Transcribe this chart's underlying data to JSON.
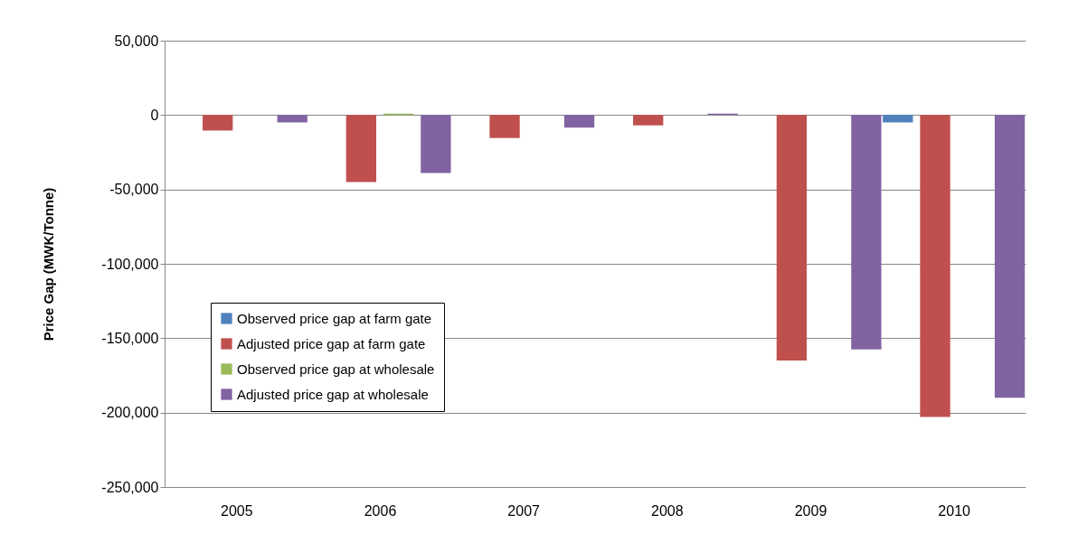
{
  "chart_data": {
    "type": "bar",
    "ylabel": "Price Gap  (MWK/Tonne)",
    "categories": [
      "2005",
      "2006",
      "2007",
      "2008",
      "2009",
      "2010"
    ],
    "series": [
      {
        "name": "Observed price gap at farm gate",
        "color": "#4f81bd",
        "values": [
          0,
          0,
          0,
          0,
          0,
          -5000
        ]
      },
      {
        "name": "Adjusted price gap at farm gate",
        "color": "#c0504d",
        "values": [
          -10500,
          -45000,
          -15500,
          -7000,
          -165000,
          -203000
        ]
      },
      {
        "name": "Observed price gap at wholesale",
        "color": "#9bbb59",
        "values": [
          0,
          1000,
          0,
          0,
          0,
          0
        ]
      },
      {
        "name": "Adjusted price gap at wholesale",
        "color": "#8064a2",
        "values": [
          -5000,
          -39000,
          -8500,
          1000,
          -157500,
          -190000
        ]
      }
    ],
    "ylim": [
      -250000,
      50000
    ],
    "yticks": [
      {
        "value": -250000,
        "label": "-250,000"
      },
      {
        "value": -200000,
        "label": "-200,000"
      },
      {
        "value": -150000,
        "label": "-150,000"
      },
      {
        "value": -100000,
        "label": "-100,000"
      },
      {
        "value": -50000,
        "label": "-50,000"
      },
      0,
      {
        "value": 50000,
        "label": "50,000"
      }
    ],
    "grid": "y",
    "legend": "bottom left"
  }
}
